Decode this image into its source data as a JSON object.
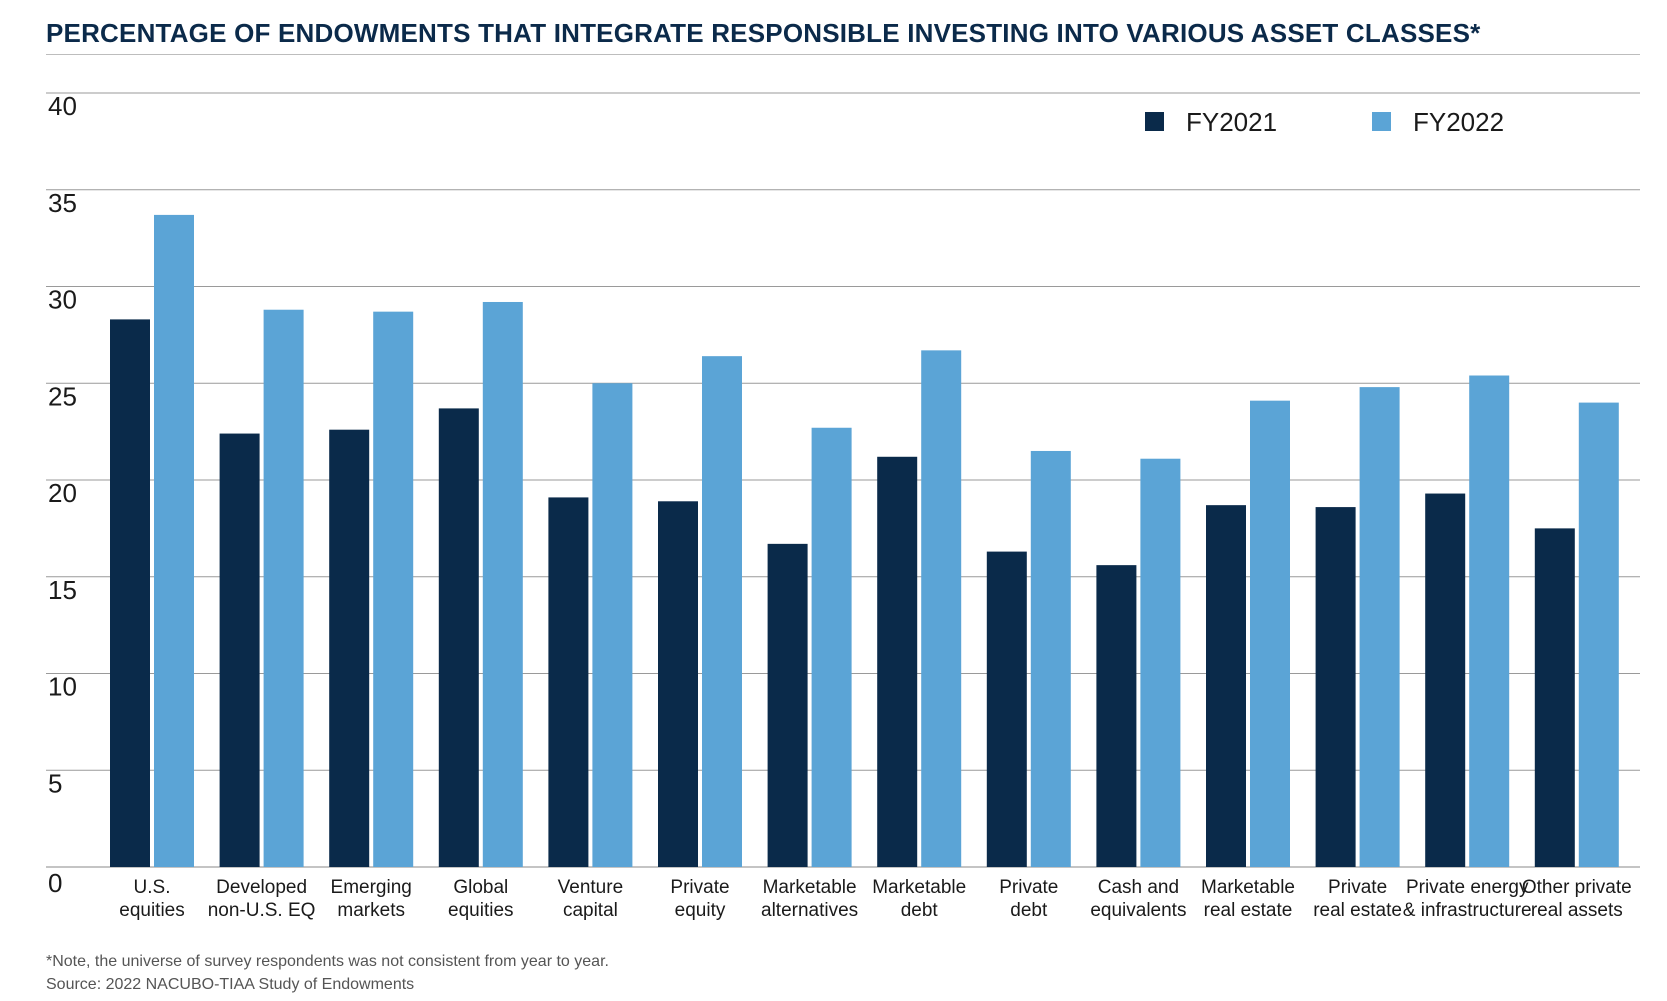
{
  "chart_data": {
    "type": "bar",
    "title": "PERCENTAGE OF ENDOWMENTS THAT INTEGRATE RESPONSIBLE INVESTING INTO VARIOUS ASSET CLASSES*",
    "xlabel": "",
    "ylabel": "",
    "ylim": [
      0,
      40
    ],
    "yticks": [
      "0",
      "5",
      "10",
      "15",
      "20",
      "25",
      "30",
      "35",
      "40"
    ],
    "grid": true,
    "legend_position": "top-right",
    "categories": [
      [
        "U.S.",
        "equities"
      ],
      [
        "Developed",
        "non-U.S. EQ"
      ],
      [
        "Emerging",
        "markets"
      ],
      [
        "Global",
        "equities"
      ],
      [
        "Venture",
        "capital"
      ],
      [
        "Private",
        "equity"
      ],
      [
        "Marketable",
        "alternatives"
      ],
      [
        "Marketable",
        "debt"
      ],
      [
        "Private",
        "debt"
      ],
      [
        "Cash and",
        "equivalents"
      ],
      [
        "Marketable",
        "real estate"
      ],
      [
        "Private",
        "real estate"
      ],
      [
        "Private energy",
        "& infrastructure"
      ],
      [
        "Other private",
        "real assets"
      ]
    ],
    "series": [
      {
        "name": "FY2021",
        "color": "#0a2a4a",
        "values": [
          28.3,
          22.4,
          22.6,
          23.7,
          19.1,
          18.9,
          16.7,
          21.2,
          16.3,
          15.6,
          18.7,
          18.6,
          19.3,
          17.5
        ]
      },
      {
        "name": "FY2022",
        "color": "#5ba4d6",
        "values": [
          33.7,
          28.8,
          28.7,
          29.2,
          25.0,
          26.4,
          22.7,
          26.7,
          21.5,
          21.1,
          24.1,
          24.8,
          25.4,
          24.0
        ]
      }
    ]
  },
  "notes": {
    "footnote": "*Note, the universe of survey respondents was not consistent from year to year.",
    "source": "Source: 2022 NACUBO-TIAA Study of Endowments"
  }
}
